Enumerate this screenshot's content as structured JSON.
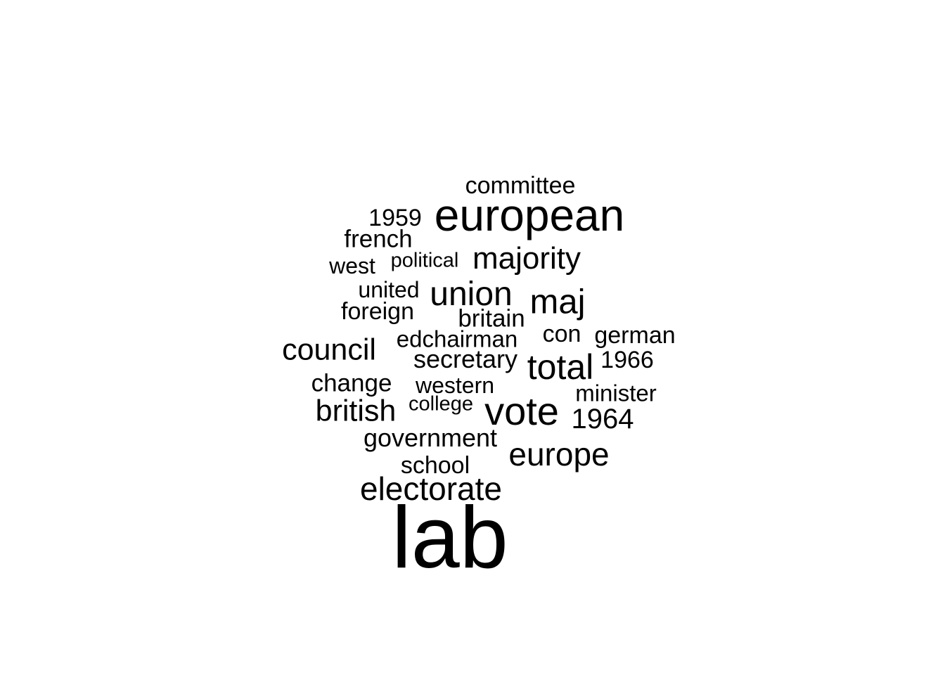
{
  "wordcloud": {
    "words": {
      "committee": "committee",
      "european": "european",
      "w1959": "1959",
      "french": "french",
      "majority": "majority",
      "political": "political",
      "west": "west",
      "united": "united",
      "union": "union",
      "maj": "maj",
      "foreign": "foreign",
      "britain": "britain",
      "con": "con",
      "german": "german",
      "edchairman": "edchairman",
      "council": "council",
      "secretary": "secretary",
      "w1966": "1966",
      "total": "total",
      "change": "change",
      "western": "western",
      "minister": "minister",
      "college": "college",
      "british": "british",
      "vote": "vote",
      "w1964": "1964",
      "government": "government",
      "europe": "europe",
      "school": "school",
      "electorate": "electorate",
      "lab": "lab"
    },
    "text_color": "#000000",
    "background_color": "#ffffff"
  }
}
